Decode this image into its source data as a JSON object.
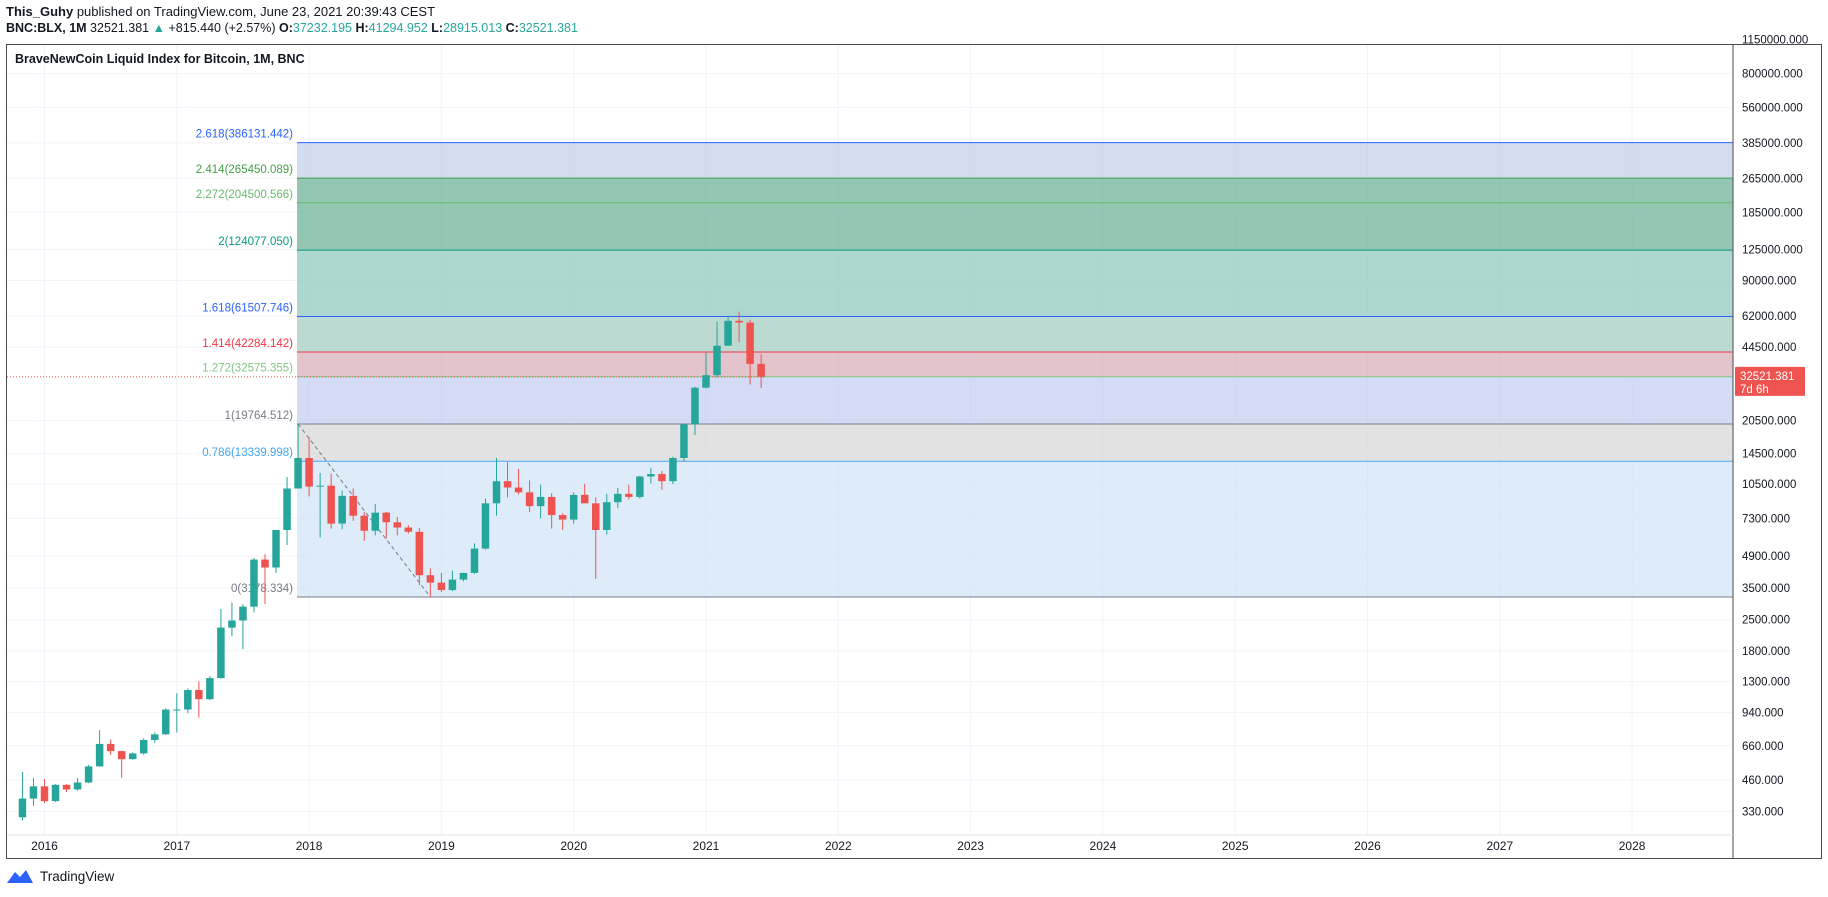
{
  "header": {
    "author": "This_Guhy",
    "published_text": "published on TradingView.com, June 23, 2021 20:39:43 CEST",
    "symbol": "BNC:BLX, 1M",
    "last": "32521.381",
    "change": "+815.440 (+2.57%)",
    "o_label": "O:",
    "o_value": "37232.195",
    "h_label": "H:",
    "h_value": "41294.952",
    "l_label": "L:",
    "l_value": "28915.013",
    "c_label": "C:",
    "c_value": "32521.381"
  },
  "footer": {
    "brand": "TradingView"
  },
  "colors": {
    "up": "#26a69a",
    "down": "#ef5350",
    "grid": "#f0f3fa",
    "price_tag_bg": "#ef5350",
    "axis_text": "#131722"
  },
  "chart_data": {
    "type": "candlestick",
    "title": "BraveNewCoin Liquid Index for Bitcoin, 1M, BNC",
    "y_scale": "log",
    "y_ticks": [
      "1150000.000",
      "800000.000",
      "560000.000",
      "385000.000",
      "265000.000",
      "185000.000",
      "125000.000",
      "90000.000",
      "62000.000",
      "44500.000",
      "20500.000",
      "14500.000",
      "10500.000",
      "7300.000",
      "4900.000",
      "3500.000",
      "2500.000",
      "1800.000",
      "1300.000",
      "940.000",
      "660.000",
      "460.000",
      "330.000"
    ],
    "x_ticks": [
      "2016",
      "2017",
      "2018",
      "2019",
      "2020",
      "2021",
      "2022",
      "2023",
      "2024",
      "2025",
      "2026",
      "2027",
      "2028"
    ],
    "last_price": {
      "value": "32521.381",
      "countdown": "7d 6h"
    },
    "fib_extension": {
      "levels": [
        {
          "ratio": "2.618",
          "price": "386131.442",
          "label": "2.618(386131.442)",
          "color": "#2962ff"
        },
        {
          "ratio": "2.414",
          "price": "265450.089",
          "label": "2.414(265450.089)",
          "color": "#43a047"
        },
        {
          "ratio": "2.272",
          "price": "204500.566",
          "label": "2.272(204500.566)",
          "color": "#66bb6a"
        },
        {
          "ratio": "2",
          "price": "124077.050",
          "label": "2(124077.050)",
          "color": "#089981"
        },
        {
          "ratio": "1.618",
          "price": "61507.746",
          "label": "1.618(61507.746)",
          "color": "#2962ff"
        },
        {
          "ratio": "1.414",
          "price": "42284.142",
          "label": "1.414(42284.142)",
          "color": "#f23645"
        },
        {
          "ratio": "1.272",
          "price": "32575.355",
          "label": "1.272(32575.355)",
          "color": "#81c784"
        },
        {
          "ratio": "1",
          "price": "19764.512",
          "label": "1(19764.512)",
          "color": "#787b86"
        },
        {
          "ratio": "0.786",
          "price": "13339.998",
          "label": "0.786(13339.998)",
          "color": "#42a5f5"
        },
        {
          "ratio": "0",
          "price": "3178.334",
          "label": "0(3178.334)",
          "color": "#787b86"
        }
      ],
      "trend_line": [
        {
          "date": "2017-12",
          "price": 19764.512
        },
        {
          "date": "2018-12",
          "price": 3178.334
        }
      ]
    },
    "candles": [
      {
        "d": "2015-11",
        "o": 310,
        "h": 500,
        "l": 300,
        "c": 378
      },
      {
        "d": "2015-12",
        "o": 378,
        "h": 470,
        "l": 350,
        "c": 430
      },
      {
        "d": "2016-01",
        "o": 430,
        "h": 465,
        "l": 360,
        "c": 368
      },
      {
        "d": "2016-02",
        "o": 368,
        "h": 440,
        "l": 365,
        "c": 437
      },
      {
        "d": "2016-03",
        "o": 437,
        "h": 440,
        "l": 405,
        "c": 416
      },
      {
        "d": "2016-04",
        "o": 416,
        "h": 470,
        "l": 412,
        "c": 448
      },
      {
        "d": "2016-05",
        "o": 448,
        "h": 540,
        "l": 445,
        "c": 531
      },
      {
        "d": "2016-06",
        "o": 531,
        "h": 780,
        "l": 530,
        "c": 673
      },
      {
        "d": "2016-07",
        "o": 673,
        "h": 705,
        "l": 600,
        "c": 624
      },
      {
        "d": "2016-08",
        "o": 624,
        "h": 625,
        "l": 470,
        "c": 573
      },
      {
        "d": "2016-09",
        "o": 573,
        "h": 615,
        "l": 570,
        "c": 609
      },
      {
        "d": "2016-10",
        "o": 609,
        "h": 715,
        "l": 600,
        "c": 702
      },
      {
        "d": "2016-11",
        "o": 702,
        "h": 760,
        "l": 680,
        "c": 745
      },
      {
        "d": "2016-12",
        "o": 745,
        "h": 980,
        "l": 740,
        "c": 968
      },
      {
        "d": "2017-01",
        "o": 968,
        "h": 1150,
        "l": 760,
        "c": 968
      },
      {
        "d": "2017-02",
        "o": 968,
        "h": 1210,
        "l": 930,
        "c": 1190
      },
      {
        "d": "2017-03",
        "o": 1190,
        "h": 1300,
        "l": 890,
        "c": 1080
      },
      {
        "d": "2017-04",
        "o": 1080,
        "h": 1380,
        "l": 1070,
        "c": 1350
      },
      {
        "d": "2017-05",
        "o": 1350,
        "h": 2800,
        "l": 1340,
        "c": 2300
      },
      {
        "d": "2017-06",
        "o": 2300,
        "h": 3000,
        "l": 2100,
        "c": 2480
      },
      {
        "d": "2017-07",
        "o": 2480,
        "h": 2950,
        "l": 1830,
        "c": 2870
      },
      {
        "d": "2017-08",
        "o": 2870,
        "h": 4800,
        "l": 2700,
        "c": 4720
      },
      {
        "d": "2017-09",
        "o": 4720,
        "h": 5000,
        "l": 2950,
        "c": 4340
      },
      {
        "d": "2017-10",
        "o": 4340,
        "h": 6450,
        "l": 4100,
        "c": 6450
      },
      {
        "d": "2017-11",
        "o": 6450,
        "h": 11300,
        "l": 5500,
        "c": 10000
      },
      {
        "d": "2017-12",
        "o": 10000,
        "h": 19764,
        "l": 10000,
        "c": 13800
      },
      {
        "d": "2018-01",
        "o": 13800,
        "h": 17200,
        "l": 9200,
        "c": 10200
      },
      {
        "d": "2018-02",
        "o": 10200,
        "h": 11800,
        "l": 5950,
        "c": 10300
      },
      {
        "d": "2018-03",
        "o": 10300,
        "h": 11700,
        "l": 6550,
        "c": 6900
      },
      {
        "d": "2018-04",
        "o": 6900,
        "h": 9800,
        "l": 6500,
        "c": 9250
      },
      {
        "d": "2018-05",
        "o": 9250,
        "h": 10000,
        "l": 7100,
        "c": 7500
      },
      {
        "d": "2018-06",
        "o": 7500,
        "h": 7800,
        "l": 5750,
        "c": 6400
      },
      {
        "d": "2018-07",
        "o": 6400,
        "h": 8500,
        "l": 6100,
        "c": 7750
      },
      {
        "d": "2018-08",
        "o": 7750,
        "h": 7800,
        "l": 5900,
        "c": 7000
      },
      {
        "d": "2018-09",
        "o": 7000,
        "h": 7400,
        "l": 6100,
        "c": 6620
      },
      {
        "d": "2018-10",
        "o": 6620,
        "h": 6800,
        "l": 6200,
        "c": 6330
      },
      {
        "d": "2018-11",
        "o": 6330,
        "h": 6600,
        "l": 3600,
        "c": 4000
      },
      {
        "d": "2018-12",
        "o": 4000,
        "h": 4300,
        "l": 3178,
        "c": 3700
      },
      {
        "d": "2019-01",
        "o": 3700,
        "h": 4100,
        "l": 3350,
        "c": 3420
      },
      {
        "d": "2019-02",
        "o": 3420,
        "h": 4200,
        "l": 3380,
        "c": 3820
      },
      {
        "d": "2019-03",
        "o": 3820,
        "h": 4100,
        "l": 3750,
        "c": 4100
      },
      {
        "d": "2019-04",
        "o": 4100,
        "h": 5600,
        "l": 4050,
        "c": 5300
      },
      {
        "d": "2019-05",
        "o": 5300,
        "h": 9000,
        "l": 5250,
        "c": 8550
      },
      {
        "d": "2019-06",
        "o": 8550,
        "h": 13800,
        "l": 7500,
        "c": 10800
      },
      {
        "d": "2019-07",
        "o": 10800,
        "h": 13200,
        "l": 9100,
        "c": 10100
      },
      {
        "d": "2019-08",
        "o": 10100,
        "h": 12300,
        "l": 9400,
        "c": 9600
      },
      {
        "d": "2019-09",
        "o": 9600,
        "h": 10900,
        "l": 7800,
        "c": 8300
      },
      {
        "d": "2019-10",
        "o": 8300,
        "h": 10400,
        "l": 7300,
        "c": 9150
      },
      {
        "d": "2019-11",
        "o": 9150,
        "h": 9500,
        "l": 6550,
        "c": 7550
      },
      {
        "d": "2019-12",
        "o": 7550,
        "h": 7700,
        "l": 6450,
        "c": 7200
      },
      {
        "d": "2020-01",
        "o": 7200,
        "h": 9600,
        "l": 6900,
        "c": 9350
      },
      {
        "d": "2020-02",
        "o": 9350,
        "h": 10500,
        "l": 8600,
        "c": 8550
      },
      {
        "d": "2020-03",
        "o": 8550,
        "h": 9100,
        "l": 3850,
        "c": 6450
      },
      {
        "d": "2020-04",
        "o": 6450,
        "h": 9450,
        "l": 6150,
        "c": 8650
      },
      {
        "d": "2020-05",
        "o": 8650,
        "h": 10050,
        "l": 8150,
        "c": 9450
      },
      {
        "d": "2020-06",
        "o": 9450,
        "h": 10400,
        "l": 8900,
        "c": 9150
      },
      {
        "d": "2020-07",
        "o": 9150,
        "h": 11450,
        "l": 9000,
        "c": 11350
      },
      {
        "d": "2020-08",
        "o": 11350,
        "h": 12450,
        "l": 10550,
        "c": 11650
      },
      {
        "d": "2020-09",
        "o": 11650,
        "h": 12050,
        "l": 9850,
        "c": 10800
      },
      {
        "d": "2020-10",
        "o": 10800,
        "h": 14000,
        "l": 10500,
        "c": 13800
      },
      {
        "d": "2020-11",
        "o": 13800,
        "h": 19750,
        "l": 13250,
        "c": 19700
      },
      {
        "d": "2020-12",
        "o": 19700,
        "h": 29300,
        "l": 17600,
        "c": 29000
      },
      {
        "d": "2021-01",
        "o": 29000,
        "h": 41950,
        "l": 28800,
        "c": 33100
      },
      {
        "d": "2021-02",
        "o": 33100,
        "h": 58300,
        "l": 32400,
        "c": 45200
      },
      {
        "d": "2021-03",
        "o": 45200,
        "h": 61700,
        "l": 45000,
        "c": 58800
      },
      {
        "d": "2021-04",
        "o": 58800,
        "h": 64800,
        "l": 47000,
        "c": 57700
      },
      {
        "d": "2021-05",
        "o": 57700,
        "h": 59500,
        "l": 30000,
        "c": 37300
      },
      {
        "d": "2021-06",
        "o": 37300,
        "h": 41295,
        "l": 28915,
        "c": 32521
      }
    ]
  }
}
